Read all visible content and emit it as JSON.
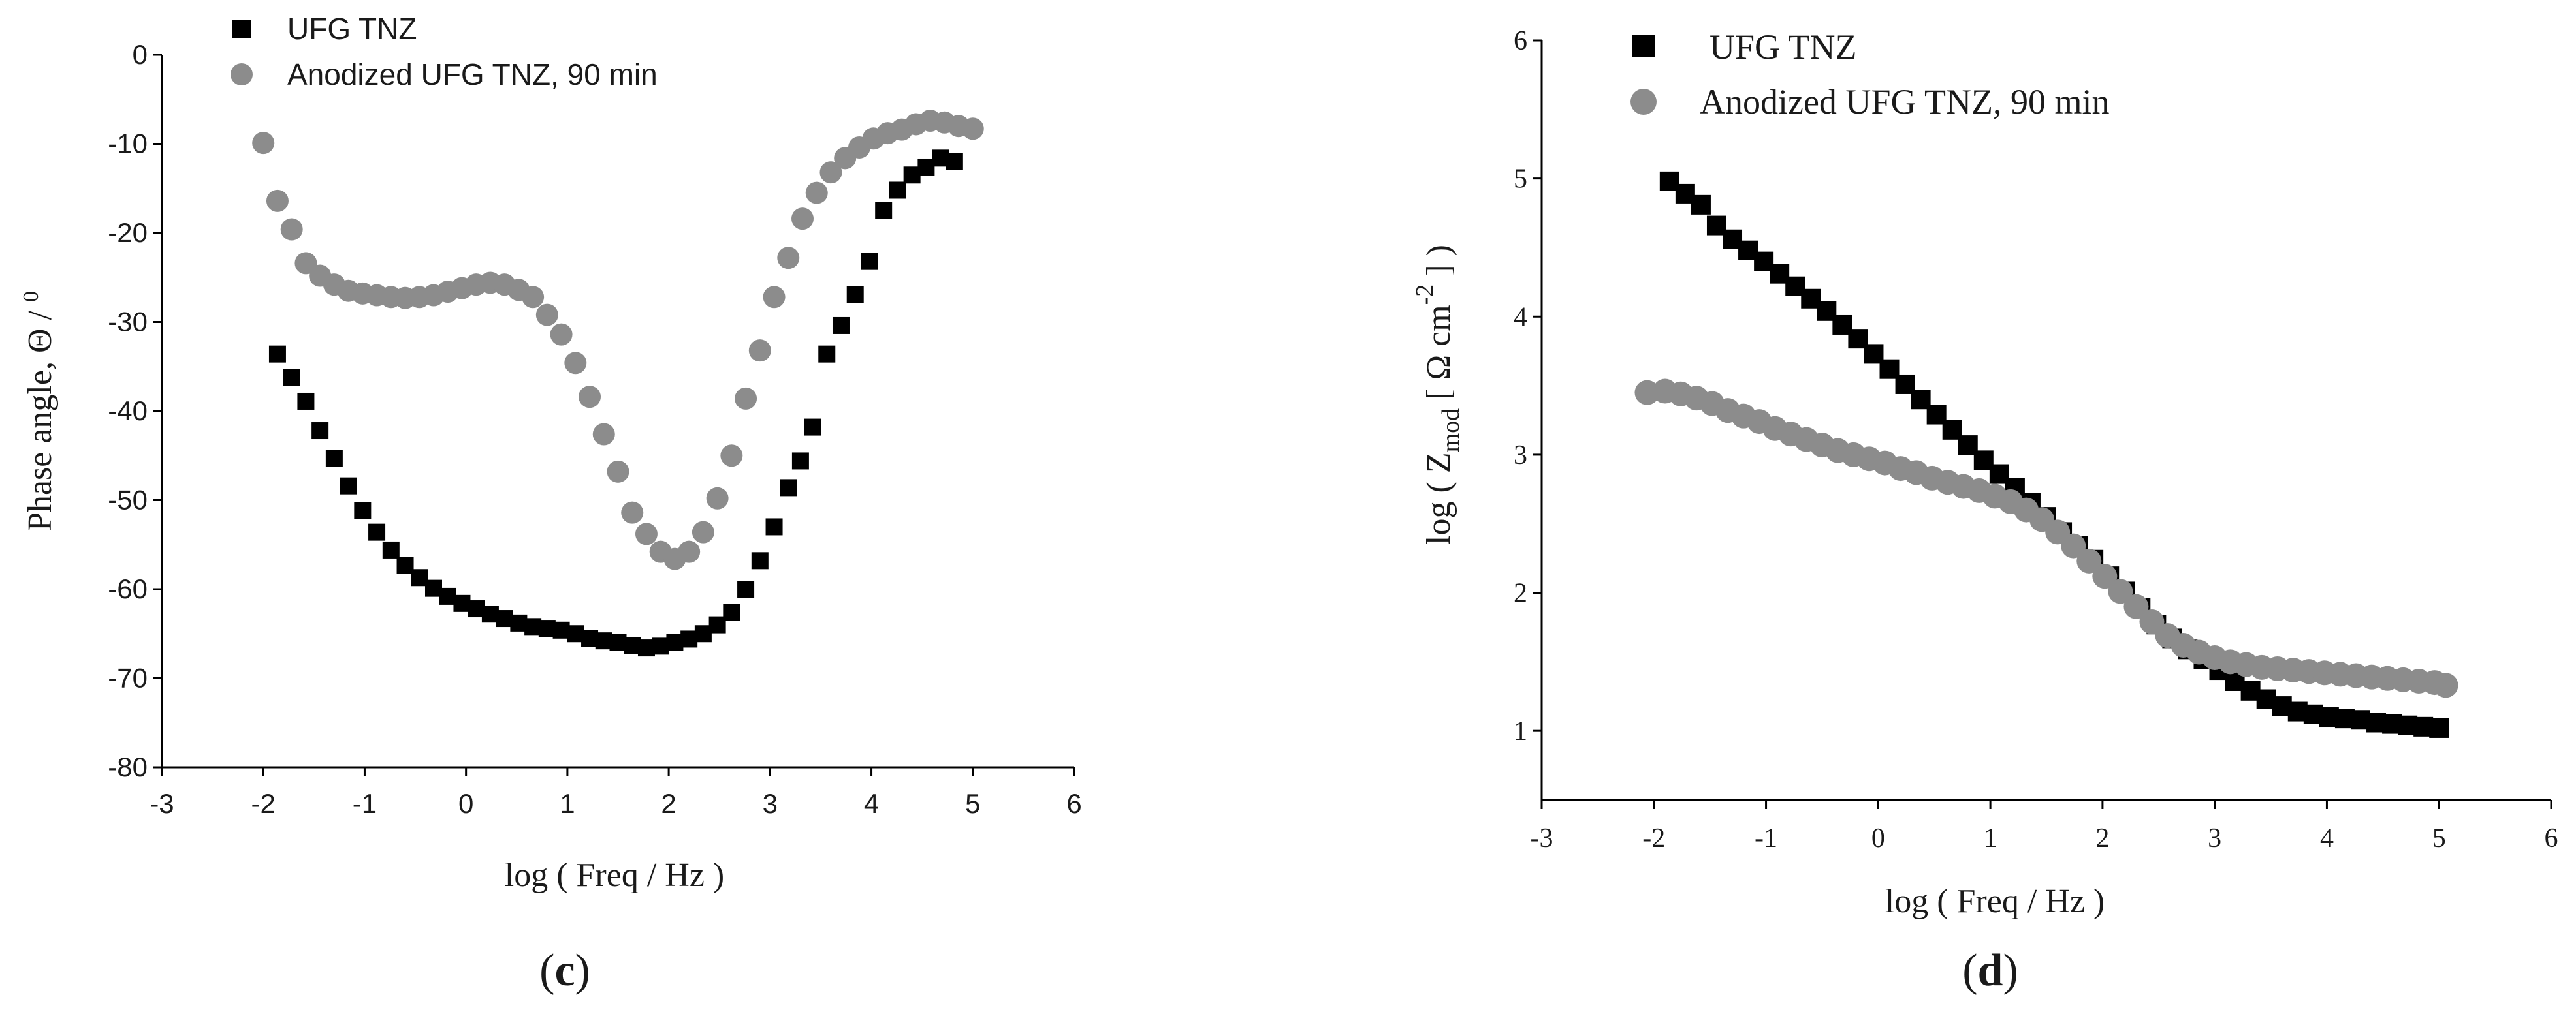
{
  "chart_data": [
    {
      "type": "scatter",
      "panel_label": "c",
      "xlabel": "log ( Freq / Hz )",
      "ylabel_main": "Phase angle, Θ / ",
      "ylabel_sup": "0",
      "xlim": [
        -3,
        6
      ],
      "ylim": [
        -80,
        0
      ],
      "xticks": [
        "-3",
        "-2",
        "-1",
        "0",
        "1",
        "2",
        "3",
        "4",
        "5",
        "6"
      ],
      "yticks": [
        "0",
        "-10",
        "-20",
        "-30",
        "-40",
        "-50",
        "-60",
        "-70",
        "-80"
      ],
      "grid": false,
      "legend_position": "top-left",
      "series": [
        {
          "name": "UFG TNZ",
          "marker": "square",
          "color": "#000000",
          "x": [
            -1.86,
            -1.72,
            -1.58,
            -1.44,
            -1.3,
            -1.16,
            -1.02,
            -0.88,
            -0.74,
            -0.6,
            -0.46,
            -0.32,
            -0.18,
            -0.04,
            0.1,
            0.24,
            0.38,
            0.52,
            0.66,
            0.8,
            0.94,
            1.08,
            1.22,
            1.36,
            1.5,
            1.64,
            1.78,
            1.92,
            2.06,
            2.2,
            2.34,
            2.48,
            2.62,
            2.76,
            2.9,
            3.04,
            3.18,
            3.3,
            3.42,
            3.56,
            3.7,
            3.84,
            3.98,
            4.12,
            4.26,
            4.4,
            4.54,
            4.68,
            4.82
          ],
          "y": [
            -33.6,
            -36.2,
            -38.9,
            -42.2,
            -45.3,
            -48.4,
            -51.2,
            -53.6,
            -55.6,
            -57.3,
            -58.7,
            -59.9,
            -60.8,
            -61.6,
            -62.2,
            -62.8,
            -63.3,
            -63.8,
            -64.2,
            -64.4,
            -64.6,
            -65.0,
            -65.5,
            -65.8,
            -66.0,
            -66.3,
            -66.6,
            -66.4,
            -66.0,
            -65.6,
            -65.0,
            -64.0,
            -62.6,
            -60.0,
            -56.8,
            -53.0,
            -48.6,
            -45.6,
            -41.8,
            -33.6,
            -30.4,
            -26.9,
            -23.2,
            -17.5,
            -15.2,
            -13.5,
            -12.6,
            -11.6,
            -12.0
          ]
        },
        {
          "name": "Anodized UFG TNZ, 90 min",
          "marker": "circle",
          "color": "#8c8c8c",
          "x": [
            -2.0,
            -1.86,
            -1.72,
            -1.58,
            -1.44,
            -1.3,
            -1.16,
            -1.02,
            -0.88,
            -0.74,
            -0.6,
            -0.46,
            -0.32,
            -0.18,
            -0.04,
            0.1,
            0.24,
            0.38,
            0.52,
            0.66,
            0.8,
            0.94,
            1.08,
            1.22,
            1.36,
            1.5,
            1.64,
            1.78,
            1.92,
            2.06,
            2.2,
            2.34,
            2.48,
            2.62,
            2.76,
            2.9,
            3.04,
            3.18,
            3.32,
            3.46,
            3.6,
            3.74,
            3.88,
            4.02,
            4.16,
            4.3,
            4.44,
            4.58,
            4.72,
            4.86,
            5.0
          ],
          "y": [
            -9.9,
            -16.4,
            -19.6,
            -23.4,
            -24.8,
            -25.8,
            -26.5,
            -26.8,
            -27.0,
            -27.2,
            -27.3,
            -27.2,
            -27.0,
            -26.6,
            -26.2,
            -25.8,
            -25.6,
            -25.8,
            -26.4,
            -27.2,
            -29.2,
            -31.4,
            -34.6,
            -38.4,
            -42.6,
            -46.8,
            -51.4,
            -53.8,
            -55.8,
            -56.6,
            -55.8,
            -53.6,
            -49.8,
            -45.0,
            -38.6,
            -33.2,
            -27.2,
            -22.8,
            -18.4,
            -15.5,
            -13.2,
            -11.6,
            -10.4,
            -9.4,
            -8.8,
            -8.4,
            -7.8,
            -7.4,
            -7.6,
            -8.0,
            -8.3
          ]
        }
      ]
    },
    {
      "type": "scatter",
      "panel_label": "d",
      "xlabel": "log ( Freq / Hz )",
      "ylabel_pre": "log ( Z",
      "ylabel_sub": "mod",
      "ylabel_mid": " [ Ω cm",
      "ylabel_sup": "-2",
      "ylabel_post": " ] )",
      "xlim": [
        -3,
        6
      ],
      "ylim": [
        0.5,
        6
      ],
      "xticks": [
        "-3",
        "-2",
        "-1",
        "0",
        "1",
        "2",
        "3",
        "4",
        "5",
        "6"
      ],
      "yticks": [
        "1",
        "2",
        "3",
        "4",
        "5",
        "6"
      ],
      "grid": false,
      "legend_position": "top-left",
      "series": [
        {
          "name": "UFG TNZ",
          "marker": "square",
          "color": "#000000",
          "x": [
            -1.86,
            -1.72,
            -1.58,
            -1.44,
            -1.3,
            -1.16,
            -1.02,
            -0.88,
            -0.74,
            -0.6,
            -0.46,
            -0.32,
            -0.18,
            -0.04,
            0.1,
            0.24,
            0.38,
            0.52,
            0.66,
            0.8,
            0.94,
            1.08,
            1.22,
            1.36,
            1.5,
            1.64,
            1.78,
            1.92,
            2.06,
            2.2,
            2.34,
            2.48,
            2.62,
            2.76,
            2.9,
            3.04,
            3.18,
            3.32,
            3.46,
            3.6,
            3.74,
            3.88,
            4.02,
            4.16,
            4.3,
            4.44,
            4.58,
            4.72,
            4.86,
            5.0
          ],
          "y": [
            4.98,
            4.89,
            4.81,
            4.66,
            4.56,
            4.48,
            4.4,
            4.31,
            4.22,
            4.13,
            4.04,
            3.94,
            3.84,
            3.73,
            3.62,
            3.51,
            3.4,
            3.29,
            3.18,
            3.07,
            2.96,
            2.86,
            2.76,
            2.65,
            2.55,
            2.44,
            2.34,
            2.24,
            2.12,
            2.01,
            1.89,
            1.77,
            1.67,
            1.59,
            1.52,
            1.44,
            1.36,
            1.29,
            1.23,
            1.18,
            1.14,
            1.12,
            1.1,
            1.09,
            1.08,
            1.06,
            1.05,
            1.04,
            1.03,
            1.02
          ]
        },
        {
          "name": "Anodized UFG TNZ, 90 min",
          "marker": "circle",
          "color": "#8c8c8c",
          "x": [
            -2.06,
            -1.9,
            -1.76,
            -1.62,
            -1.48,
            -1.34,
            -1.2,
            -1.06,
            -0.92,
            -0.78,
            -0.64,
            -0.5,
            -0.36,
            -0.22,
            -0.08,
            0.06,
            0.2,
            0.34,
            0.48,
            0.62,
            0.76,
            0.9,
            1.04,
            1.18,
            1.32,
            1.46,
            1.6,
            1.74,
            1.88,
            2.02,
            2.16,
            2.3,
            2.44,
            2.58,
            2.72,
            2.86,
            3.0,
            3.14,
            3.28,
            3.42,
            3.56,
            3.7,
            3.84,
            3.98,
            4.12,
            4.26,
            4.4,
            4.54,
            4.68,
            4.82,
            4.96,
            5.06
          ],
          "y": [
            3.45,
            3.46,
            3.44,
            3.41,
            3.37,
            3.32,
            3.28,
            3.24,
            3.19,
            3.15,
            3.11,
            3.07,
            3.03,
            3.0,
            2.97,
            2.94,
            2.9,
            2.87,
            2.83,
            2.8,
            2.77,
            2.74,
            2.7,
            2.66,
            2.6,
            2.53,
            2.44,
            2.34,
            2.23,
            2.12,
            2.01,
            1.9,
            1.79,
            1.69,
            1.62,
            1.57,
            1.53,
            1.5,
            1.48,
            1.46,
            1.45,
            1.44,
            1.43,
            1.42,
            1.41,
            1.4,
            1.39,
            1.38,
            1.37,
            1.36,
            1.35,
            1.33
          ]
        }
      ]
    }
  ]
}
